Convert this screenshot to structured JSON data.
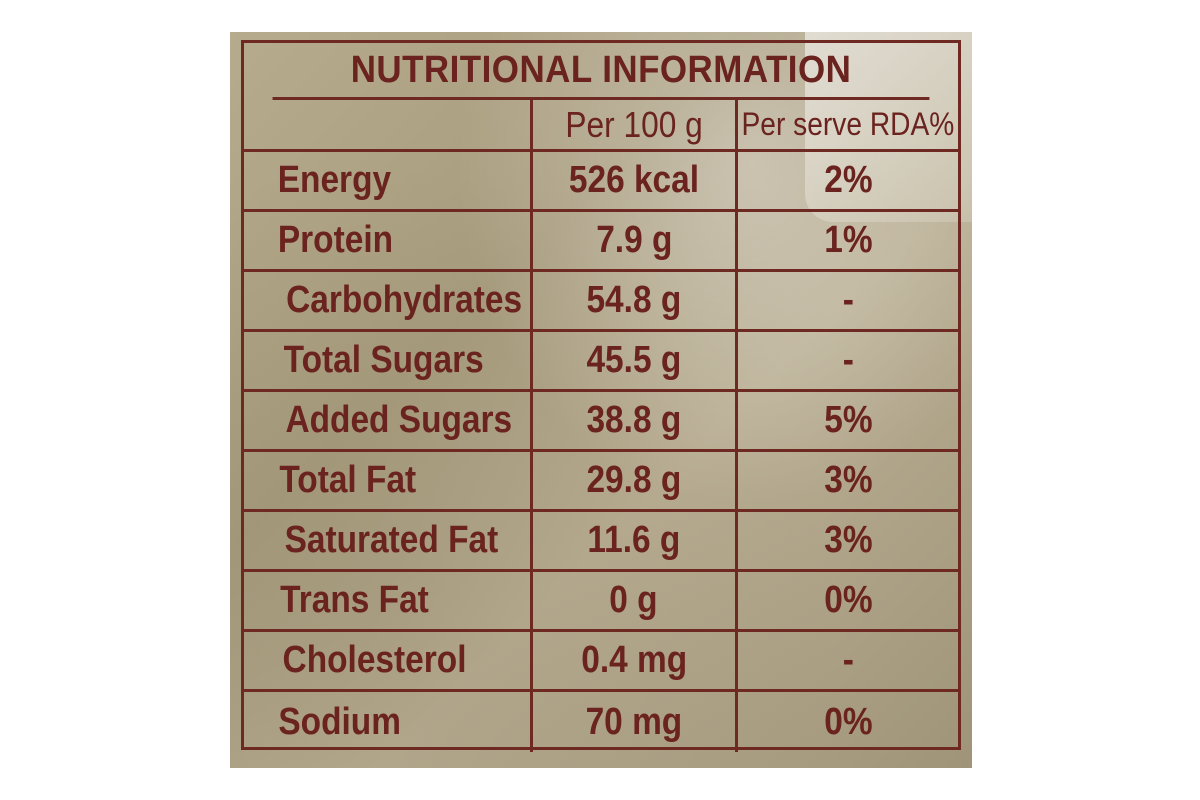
{
  "label": {
    "title": "NUTRITIONAL INFORMATION",
    "headers": [
      "",
      "Per 100 g",
      "Per serve RDA%"
    ],
    "rows": [
      {
        "nutrient": "Energy",
        "per_100g": "526 kcal",
        "rda": "2%"
      },
      {
        "nutrient": "Protein",
        "per_100g": "7.9 g",
        "rda": "1%"
      },
      {
        "nutrient": "Carbohydrates",
        "per_100g": "54.8 g",
        "rda": "-"
      },
      {
        "nutrient": "Total Sugars",
        "per_100g": "45.5 g",
        "rda": "-"
      },
      {
        "nutrient": "Added Sugars",
        "per_100g": "38.8 g",
        "rda": "5%"
      },
      {
        "nutrient": "Total Fat",
        "per_100g": "29.8 g",
        "rda": "3%"
      },
      {
        "nutrient": "Saturated Fat",
        "per_100g": "11.6 g",
        "rda": "3%"
      },
      {
        "nutrient": "Trans Fat",
        "per_100g": "0 g",
        "rda": "0%"
      },
      {
        "nutrient": "Cholesterol",
        "per_100g": "0.4 mg",
        "rda": "-"
      },
      {
        "nutrient": "Sodium",
        "per_100g": "70 mg",
        "rda": "0%"
      }
    ]
  },
  "colors": {
    "ink": "#6a231e",
    "background": "#b0a486"
  }
}
